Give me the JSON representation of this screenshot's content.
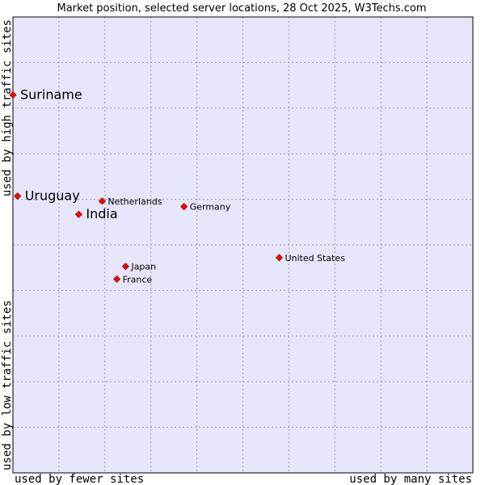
{
  "chart_data": {
    "type": "scatter",
    "title": "Market position, selected server locations, 28 Oct 2025, W3Techs.com",
    "xlabel_left": "used by fewer sites",
    "xlabel_right": "used by many sites",
    "ylabel_top": "used by high traffic sites",
    "ylabel_bottom": "used by low traffic sites",
    "xlim": [
      0,
      100
    ],
    "ylim": [
      0,
      100
    ],
    "grid": true,
    "marker_color": "#ff0000",
    "plot_background": "#e6e6fa",
    "points": [
      {
        "label": "Suriname",
        "x": 0.0,
        "y": 82.9,
        "emphasis": true
      },
      {
        "label": "Uruguay",
        "x": 1.0,
        "y": 60.7,
        "emphasis": true
      },
      {
        "label": "India",
        "x": 14.3,
        "y": 56.7,
        "emphasis": true
      },
      {
        "label": "Netherlands",
        "x": 19.4,
        "y": 59.6,
        "emphasis": false
      },
      {
        "label": "Germany",
        "x": 37.2,
        "y": 58.4,
        "emphasis": false
      },
      {
        "label": "United States",
        "x": 57.9,
        "y": 47.2,
        "emphasis": false
      },
      {
        "label": "Japan",
        "x": 24.5,
        "y": 45.3,
        "emphasis": false
      },
      {
        "label": "France",
        "x": 22.6,
        "y": 42.5,
        "emphasis": false
      }
    ]
  }
}
